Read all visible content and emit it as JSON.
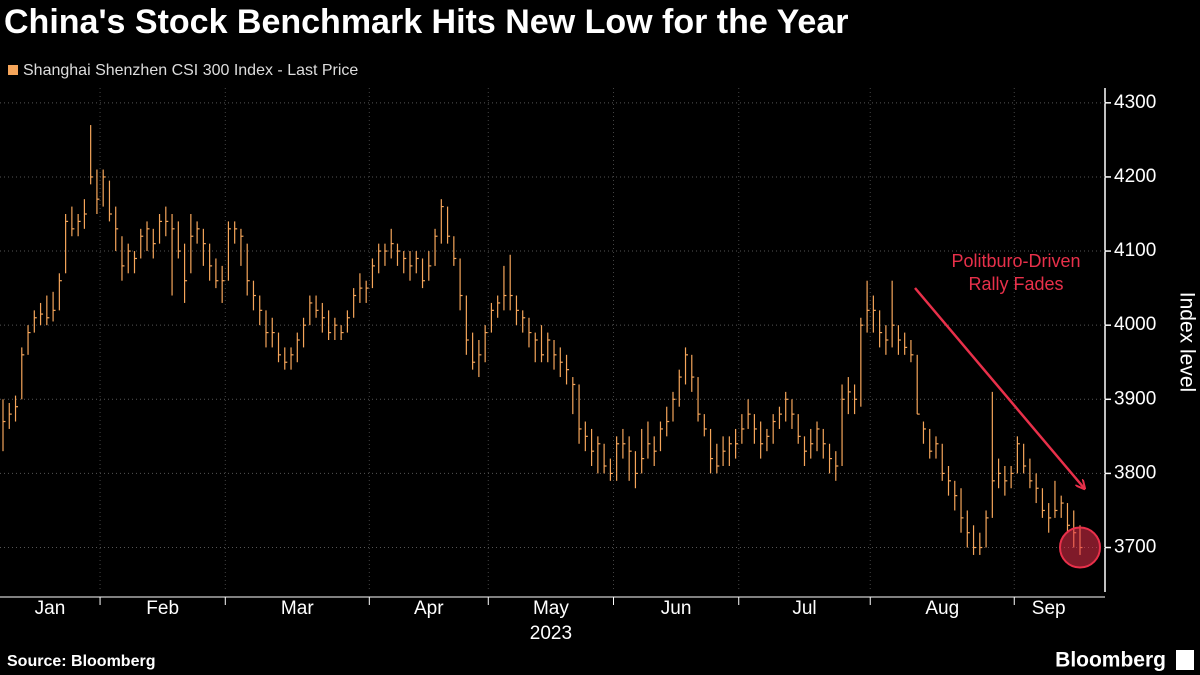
{
  "chart_data": {
    "type": "ohlc",
    "title": "China's Stock Benchmark Hits New Low for the Year",
    "legend": "Shanghai Shenzhen CSI 300 Index - Last Price",
    "color": "#f5a55a",
    "y_label": "Index level",
    "year_label": "2023",
    "source": "Source: Bloomberg",
    "brand": "Bloomberg",
    "annotation": {
      "lines": [
        "Politburo-Driven",
        "Rally Fades"
      ],
      "color": "#e8304a"
    },
    "ylim": [
      3640,
      4320
    ],
    "yticks": [
      3700,
      3800,
      3900,
      4000,
      4100,
      4200,
      4300
    ],
    "grid": true,
    "bar_fields": [
      "high",
      "low",
      "close"
    ],
    "months": [
      {
        "label": "Jan",
        "bars": [
          [
            3900,
            3830,
            3870
          ],
          [
            3895,
            3860,
            3880
          ],
          [
            3905,
            3870,
            3890
          ],
          [
            3970,
            3900,
            3960
          ],
          [
            4000,
            3960,
            3990
          ],
          [
            4020,
            3990,
            4010
          ],
          [
            4030,
            4000,
            4015
          ],
          [
            4040,
            4000,
            4010
          ],
          [
            4045,
            4005,
            4020
          ],
          [
            4070,
            4020,
            4060
          ],
          [
            4150,
            4070,
            4140
          ],
          [
            4160,
            4120,
            4130
          ],
          [
            4150,
            4120,
            4140
          ],
          [
            4170,
            4130,
            4150
          ],
          [
            4270,
            4190,
            4200
          ],
          [
            4210,
            4150,
            4170
          ]
        ]
      },
      {
        "label": "Feb",
        "bars": [
          [
            4210,
            4160,
            4200
          ],
          [
            4195,
            4140,
            4150
          ],
          [
            4160,
            4100,
            4130
          ],
          [
            4120,
            4060,
            4080
          ],
          [
            4110,
            4070,
            4100
          ],
          [
            4100,
            4070,
            4090
          ],
          [
            4130,
            4090,
            4120
          ],
          [
            4140,
            4100,
            4130
          ],
          [
            4130,
            4090,
            4110
          ],
          [
            4150,
            4110,
            4140
          ],
          [
            4160,
            4120,
            4140
          ],
          [
            4150,
            4040,
            4130
          ],
          [
            4140,
            4090,
            4100
          ],
          [
            4110,
            4030,
            4060
          ],
          [
            4150,
            4070,
            4120
          ],
          [
            4140,
            4110,
            4130
          ],
          [
            4130,
            4080,
            4110
          ],
          [
            4110,
            4060,
            4080
          ],
          [
            4090,
            4050,
            4060
          ],
          [
            4080,
            4030,
            4060
          ]
        ]
      },
      {
        "label": "Mar",
        "bars": [
          [
            4140,
            4060,
            4130
          ],
          [
            4140,
            4110,
            4130
          ],
          [
            4130,
            4080,
            4120
          ],
          [
            4110,
            4040,
            4060
          ],
          [
            4060,
            4020,
            4040
          ],
          [
            4040,
            4000,
            4020
          ],
          [
            4020,
            3970,
            3990
          ],
          [
            4010,
            3970,
            3990
          ],
          [
            3990,
            3950,
            3960
          ],
          [
            3970,
            3940,
            3950
          ],
          [
            3970,
            3940,
            3960
          ],
          [
            3990,
            3950,
            3980
          ],
          [
            4010,
            3970,
            4000
          ],
          [
            4040,
            4000,
            4030
          ],
          [
            4040,
            4010,
            4020
          ],
          [
            4030,
            3990,
            4010
          ],
          [
            4020,
            3980,
            3990
          ],
          [
            4010,
            3980,
            4000
          ],
          [
            4000,
            3980,
            3990
          ],
          [
            4020,
            3990,
            4010
          ],
          [
            4050,
            4010,
            4040
          ],
          [
            4070,
            4030,
            4050
          ],
          [
            4060,
            4030,
            4050
          ]
        ]
      },
      {
        "label": "Apr",
        "bars": [
          [
            4090,
            4050,
            4080
          ],
          [
            4110,
            4070,
            4100
          ],
          [
            4110,
            4080,
            4100
          ],
          [
            4130,
            4090,
            4110
          ],
          [
            4110,
            4080,
            4100
          ],
          [
            4100,
            4070,
            4090
          ],
          [
            4100,
            4060,
            4080
          ],
          [
            4100,
            4070,
            4090
          ],
          [
            4090,
            4050,
            4060
          ],
          [
            4100,
            4060,
            4080
          ],
          [
            4130,
            4080,
            4120
          ],
          [
            4170,
            4110,
            4160
          ],
          [
            4160,
            4110,
            4120
          ],
          [
            4120,
            4080,
            4090
          ],
          [
            4090,
            4020,
            4040
          ],
          [
            4040,
            3960,
            3980
          ],
          [
            3990,
            3940,
            3950
          ],
          [
            3980,
            3930,
            3960
          ],
          [
            4000,
            3950,
            3990
          ]
        ]
      },
      {
        "label": "May",
        "bars": [
          [
            4030,
            3990,
            4020
          ],
          [
            4040,
            4010,
            4030
          ],
          [
            4080,
            4020,
            4040
          ],
          [
            4095,
            4020,
            4040
          ],
          [
            4040,
            4000,
            4020
          ],
          [
            4020,
            3990,
            4010
          ],
          [
            4010,
            3970,
            3990
          ],
          [
            3990,
            3950,
            3980
          ],
          [
            4000,
            3950,
            3960
          ],
          [
            3990,
            3950,
            3980
          ],
          [
            3980,
            3940,
            3960
          ],
          [
            3970,
            3930,
            3950
          ],
          [
            3960,
            3920,
            3940
          ],
          [
            3930,
            3880,
            3920
          ],
          [
            3920,
            3840,
            3860
          ],
          [
            3870,
            3830,
            3850
          ],
          [
            3860,
            3810,
            3830
          ],
          [
            3850,
            3800,
            3840
          ],
          [
            3840,
            3800,
            3810
          ],
          [
            3820,
            3790,
            3800
          ]
        ]
      },
      {
        "label": "Jun",
        "bars": [
          [
            3850,
            3790,
            3840
          ],
          [
            3860,
            3820,
            3840
          ],
          [
            3850,
            3790,
            3830
          ],
          [
            3830,
            3780,
            3800
          ],
          [
            3860,
            3800,
            3820
          ],
          [
            3870,
            3820,
            3840
          ],
          [
            3850,
            3810,
            3830
          ],
          [
            3870,
            3830,
            3860
          ],
          [
            3890,
            3850,
            3870
          ],
          [
            3910,
            3870,
            3900
          ],
          [
            3940,
            3890,
            3930
          ],
          [
            3970,
            3920,
            3960
          ],
          [
            3960,
            3910,
            3930
          ],
          [
            3930,
            3870,
            3880
          ],
          [
            3880,
            3850,
            3860
          ],
          [
            3860,
            3800,
            3820
          ],
          [
            3840,
            3800,
            3810
          ],
          [
            3850,
            3810,
            3830
          ],
          [
            3850,
            3810,
            3840
          ],
          [
            3860,
            3820,
            3840
          ]
        ]
      },
      {
        "label": "Jul",
        "bars": [
          [
            3880,
            3840,
            3860
          ],
          [
            3900,
            3860,
            3880
          ],
          [
            3880,
            3840,
            3860
          ],
          [
            3870,
            3820,
            3840
          ],
          [
            3860,
            3830,
            3850
          ],
          [
            3880,
            3840,
            3870
          ],
          [
            3890,
            3860,
            3880
          ],
          [
            3910,
            3870,
            3900
          ],
          [
            3900,
            3860,
            3880
          ],
          [
            3880,
            3840,
            3850
          ],
          [
            3850,
            3810,
            3830
          ],
          [
            3860,
            3820,
            3840
          ],
          [
            3870,
            3830,
            3860
          ],
          [
            3860,
            3820,
            3840
          ],
          [
            3840,
            3800,
            3820
          ],
          [
            3830,
            3790,
            3810
          ],
          [
            3920,
            3810,
            3900
          ],
          [
            3930,
            3880,
            3910
          ],
          [
            3920,
            3880,
            3900
          ],
          [
            4010,
            3890,
            4000
          ],
          [
            4060,
            3990,
            4020
          ]
        ]
      },
      {
        "label": "Aug",
        "bars": [
          [
            4040,
            3990,
            4020
          ],
          [
            4020,
            3970,
            3990
          ],
          [
            4000,
            3960,
            3980
          ],
          [
            4060,
            3970,
            4000
          ],
          [
            4000,
            3960,
            3980
          ],
          [
            3990,
            3960,
            3970
          ],
          [
            3980,
            3950,
            3960
          ],
          [
            3960,
            3880,
            3880
          ],
          [
            3870,
            3840,
            3860
          ],
          [
            3860,
            3820,
            3830
          ],
          [
            3850,
            3820,
            3840
          ],
          [
            3840,
            3790,
            3800
          ],
          [
            3810,
            3770,
            3790
          ],
          [
            3790,
            3750,
            3770
          ],
          [
            3780,
            3720,
            3740
          ],
          [
            3750,
            3700,
            3720
          ],
          [
            3730,
            3690,
            3700
          ],
          [
            3720,
            3690,
            3700
          ],
          [
            3750,
            3700,
            3740
          ],
          [
            3910,
            3740,
            3790
          ],
          [
            3820,
            3780,
            3800
          ],
          [
            3810,
            3770,
            3790
          ],
          [
            3810,
            3780,
            3800
          ]
        ]
      },
      {
        "label": "Sep",
        "bars": [
          [
            3850,
            3800,
            3840
          ],
          [
            3840,
            3800,
            3810
          ],
          [
            3820,
            3780,
            3790
          ],
          [
            3800,
            3760,
            3780
          ],
          [
            3780,
            3740,
            3750
          ],
          [
            3760,
            3720,
            3740
          ],
          [
            3790,
            3740,
            3750
          ],
          [
            3770,
            3740,
            3760
          ],
          [
            3760,
            3720,
            3730
          ],
          [
            3750,
            3700,
            3720
          ],
          [
            3730,
            3690,
            3700
          ]
        ]
      }
    ]
  }
}
